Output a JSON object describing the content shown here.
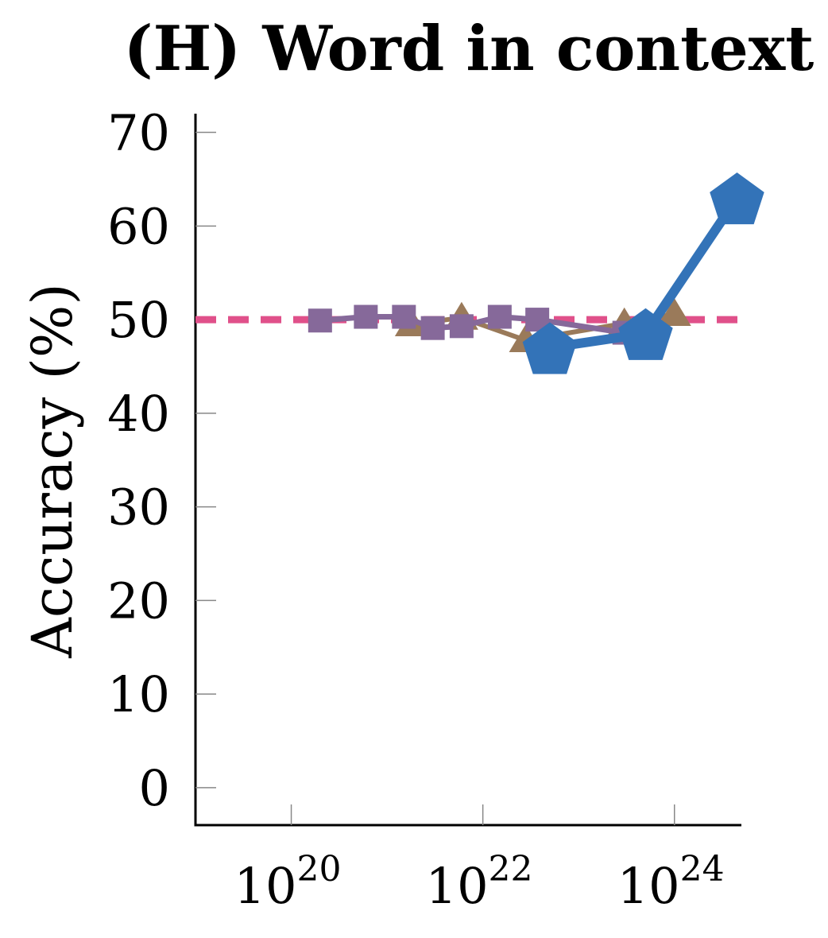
{
  "chart_data": {
    "type": "line",
    "title": "(H) Word in context",
    "xlabel": "",
    "ylabel": "Accuracy (%)",
    "x_scale": "log10",
    "xlim": [
      1e+19,
      5e+24
    ],
    "ylim": [
      -4,
      72
    ],
    "x_ticks": [
      {
        "base": "10",
        "exp": "20",
        "value": 1e+20
      },
      {
        "base": "10",
        "exp": "22",
        "value": 1e+22
      },
      {
        "base": "10",
        "exp": "24",
        "value": 1e+24
      }
    ],
    "y_ticks": [
      "0",
      "10",
      "20",
      "30",
      "40",
      "50",
      "60",
      "70"
    ],
    "y_tick_values": [
      0,
      10,
      20,
      30,
      40,
      50,
      60,
      70
    ],
    "legend": "none",
    "grid": false,
    "reference_lines": [
      {
        "y": 50,
        "color": "#e0508a",
        "style": "dashed"
      }
    ],
    "series": [
      {
        "color": "#3373b8",
        "marker": "pentagon",
        "x": [
          5e+22,
          5e+23,
          4.5e+24
        ],
        "y": [
          47,
          48.5,
          63
        ]
      },
      {
        "color": "#9a7a5a",
        "marker": "triangle",
        "x": [
          1.8e+21,
          6e+21,
          2.8e+22,
          3e+23,
          1e+24
        ],
        "y": [
          49.5,
          50.2,
          47.8,
          49.6,
          50.6
        ]
      },
      {
        "color": "#86699a",
        "marker": "square",
        "x": [
          2e+20,
          6e+20,
          1.5e+21,
          3e+21,
          6e+21,
          1.5e+22,
          3.7e+22,
          3e+23
        ],
        "y": [
          49.9,
          50.3,
          50.3,
          49.1,
          49.3,
          50.3,
          50,
          48.6
        ]
      }
    ]
  }
}
